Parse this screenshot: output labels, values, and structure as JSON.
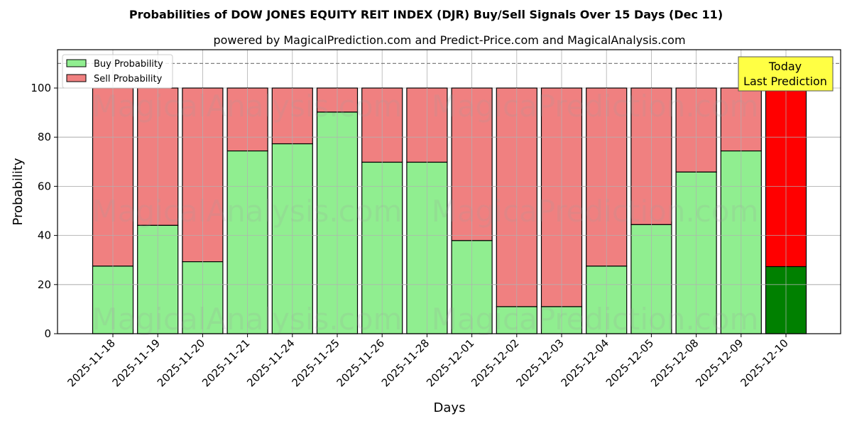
{
  "title": "Probabilities of DOW JONES EQUITY REIT INDEX (DJR) Buy/Sell Signals Over 15 Days (Dec 11)",
  "subtitle": "powered by MagicalPrediction.com and Predict-Price.com and MagicalAnalysis.com",
  "xlabel": "Days",
  "ylabel": "Probability",
  "legend": {
    "buy_label": "Buy Probability",
    "sell_label": "Sell Probability"
  },
  "annotation": {
    "line1": "Today",
    "line2": "Last Prediction"
  },
  "watermarks": [
    "MagicalAnalysis.com",
    "MagicaPrediction.com"
  ],
  "colors": {
    "buy": "#90ee90",
    "sell": "#f08080",
    "today_buy": "#008000",
    "today_sell": "#ff0000",
    "annotation_bg": "#ffff44"
  },
  "chart_data": {
    "type": "bar",
    "stacked": true,
    "title": "Probabilities of DOW JONES EQUITY REIT INDEX (DJR) Buy/Sell Signals Over 15 Days (Dec 11)",
    "subtitle": "powered by MagicalPrediction.com and Predict-Price.com and MagicalAnalysis.com",
    "xlabel": "Days",
    "ylabel": "Probability",
    "ylim": [
      0,
      115
    ],
    "yticks": [
      0,
      20,
      40,
      60,
      80,
      100
    ],
    "grid": true,
    "legend_position": "upper left",
    "reference_line": {
      "y": 110,
      "style": "dashed",
      "color": "#808080"
    },
    "categories": [
      "2025-11-18",
      "2025-11-19",
      "2025-11-20",
      "2025-11-21",
      "2025-11-24",
      "2025-11-25",
      "2025-11-26",
      "2025-11-28",
      "2025-12-01",
      "2025-12-02",
      "2025-12-03",
      "2025-12-04",
      "2025-12-05",
      "2025-12-08",
      "2025-12-09",
      "2025-12-10"
    ],
    "series": [
      {
        "name": "Buy Probability",
        "values": [
          27.5,
          44.1,
          29.3,
          74.4,
          77.3,
          90.2,
          69.8,
          69.8,
          37.9,
          11.0,
          11.0,
          27.5,
          44.4,
          65.8,
          74.4,
          27.3
        ]
      },
      {
        "name": "Sell Probability",
        "values": [
          72.5,
          55.9,
          70.7,
          25.6,
          22.7,
          9.8,
          30.2,
          30.2,
          62.1,
          89.0,
          89.0,
          72.5,
          55.6,
          34.2,
          25.6,
          72.7
        ]
      }
    ],
    "highlight": {
      "index": 15,
      "label": "Today\nLast Prediction"
    }
  }
}
